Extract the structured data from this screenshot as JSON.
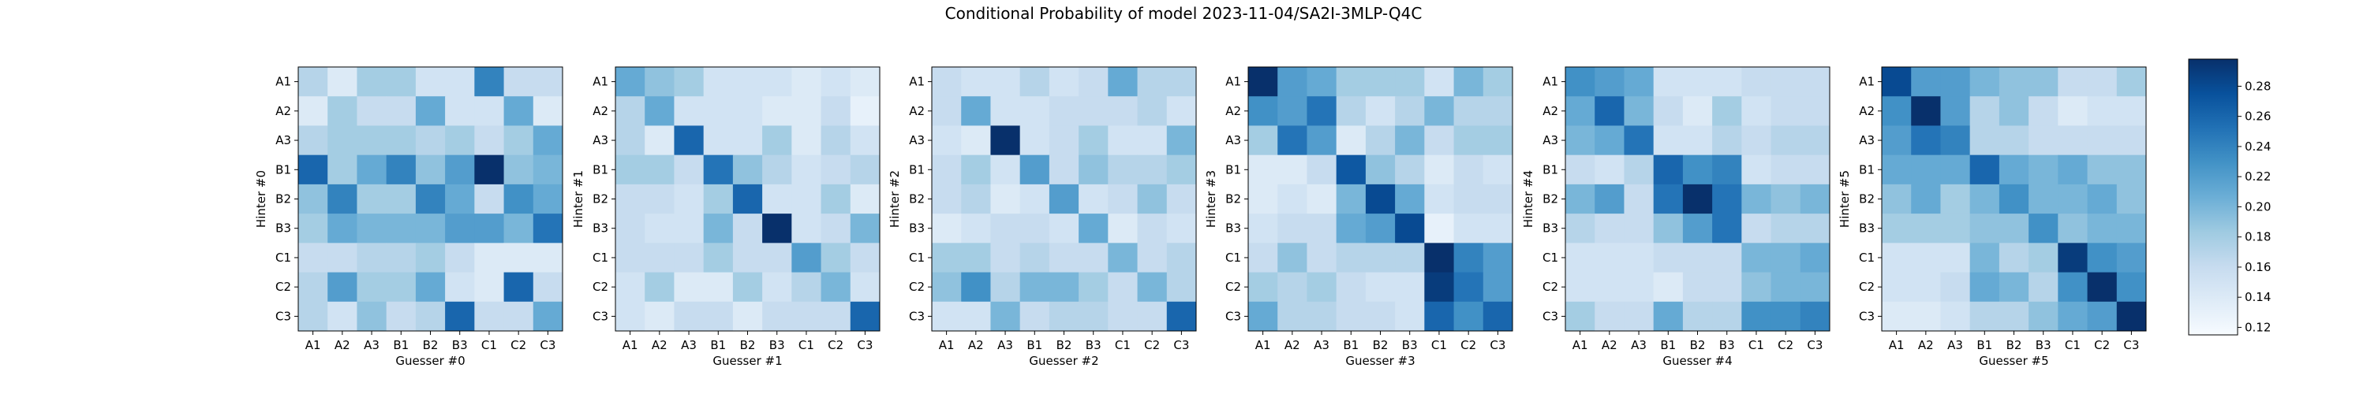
{
  "figure": {
    "title": "Conditional Probability of model 2023-11-04/SA2I-3MLP-Q4C"
  },
  "chart_data": [
    {
      "type": "heatmap",
      "index": 0,
      "xlabel": "Guesser #0",
      "ylabel": "Hinter #0",
      "x_categories": [
        "A1",
        "A2",
        "A3",
        "B1",
        "B2",
        "B3",
        "C1",
        "C2",
        "C3"
      ],
      "y_categories": [
        "A1",
        "A2",
        "A3",
        "B1",
        "B2",
        "B3",
        "C1",
        "C2",
        "C3"
      ],
      "values": [
        [
          0.17,
          0.14,
          0.18,
          0.18,
          0.15,
          0.15,
          0.24,
          0.16,
          0.16
        ],
        [
          0.14,
          0.18,
          0.16,
          0.16,
          0.21,
          0.15,
          0.15,
          0.21,
          0.14
        ],
        [
          0.17,
          0.18,
          0.18,
          0.18,
          0.17,
          0.18,
          0.16,
          0.18,
          0.21
        ],
        [
          0.26,
          0.18,
          0.21,
          0.24,
          0.19,
          0.22,
          0.3,
          0.19,
          0.2
        ],
        [
          0.19,
          0.24,
          0.18,
          0.18,
          0.24,
          0.21,
          0.16,
          0.23,
          0.21
        ],
        [
          0.18,
          0.21,
          0.2,
          0.2,
          0.2,
          0.22,
          0.22,
          0.2,
          0.25
        ],
        [
          0.16,
          0.16,
          0.17,
          0.17,
          0.18,
          0.16,
          0.14,
          0.14,
          0.14
        ],
        [
          0.17,
          0.22,
          0.18,
          0.18,
          0.21,
          0.15,
          0.14,
          0.26,
          0.16
        ],
        [
          0.17,
          0.15,
          0.19,
          0.16,
          0.17,
          0.26,
          0.16,
          0.16,
          0.21
        ]
      ]
    },
    {
      "type": "heatmap",
      "index": 1,
      "xlabel": "Guesser #1",
      "ylabel": "Hinter #1",
      "x_categories": [
        "A1",
        "A2",
        "A3",
        "B1",
        "B2",
        "B3",
        "C1",
        "C2",
        "C3"
      ],
      "y_categories": [
        "A1",
        "A2",
        "A3",
        "B1",
        "B2",
        "B3",
        "C1",
        "C2",
        "C3"
      ],
      "values": [
        [
          0.21,
          0.19,
          0.18,
          0.15,
          0.15,
          0.15,
          0.14,
          0.15,
          0.14
        ],
        [
          0.17,
          0.21,
          0.15,
          0.15,
          0.15,
          0.14,
          0.14,
          0.16,
          0.13
        ],
        [
          0.17,
          0.14,
          0.26,
          0.15,
          0.15,
          0.18,
          0.14,
          0.17,
          0.15
        ],
        [
          0.18,
          0.18,
          0.16,
          0.25,
          0.19,
          0.17,
          0.15,
          0.16,
          0.17
        ],
        [
          0.16,
          0.16,
          0.15,
          0.18,
          0.26,
          0.15,
          0.15,
          0.18,
          0.14
        ],
        [
          0.16,
          0.15,
          0.15,
          0.2,
          0.16,
          0.3,
          0.15,
          0.16,
          0.2
        ],
        [
          0.16,
          0.16,
          0.16,
          0.18,
          0.16,
          0.16,
          0.22,
          0.18,
          0.16
        ],
        [
          0.15,
          0.18,
          0.14,
          0.14,
          0.18,
          0.15,
          0.17,
          0.2,
          0.15
        ],
        [
          0.15,
          0.14,
          0.16,
          0.16,
          0.14,
          0.16,
          0.16,
          0.16,
          0.26
        ]
      ]
    },
    {
      "type": "heatmap",
      "index": 2,
      "xlabel": "Guesser #2",
      "ylabel": "Hinter #2",
      "x_categories": [
        "A1",
        "A2",
        "A3",
        "B1",
        "B2",
        "B3",
        "C1",
        "C2",
        "C3"
      ],
      "y_categories": [
        "A1",
        "A2",
        "A3",
        "B1",
        "B2",
        "B3",
        "C1",
        "C2",
        "C3"
      ],
      "values": [
        [
          0.16,
          0.15,
          0.15,
          0.17,
          0.15,
          0.16,
          0.21,
          0.17,
          0.17
        ],
        [
          0.16,
          0.21,
          0.15,
          0.15,
          0.16,
          0.16,
          0.16,
          0.17,
          0.15
        ],
        [
          0.15,
          0.14,
          0.3,
          0.15,
          0.16,
          0.18,
          0.15,
          0.15,
          0.2
        ],
        [
          0.16,
          0.18,
          0.15,
          0.22,
          0.16,
          0.19,
          0.17,
          0.17,
          0.18
        ],
        [
          0.16,
          0.17,
          0.14,
          0.15,
          0.22,
          0.15,
          0.16,
          0.19,
          0.16
        ],
        [
          0.14,
          0.15,
          0.16,
          0.16,
          0.15,
          0.21,
          0.14,
          0.16,
          0.15
        ],
        [
          0.18,
          0.18,
          0.16,
          0.17,
          0.16,
          0.16,
          0.2,
          0.16,
          0.17
        ],
        [
          0.19,
          0.23,
          0.17,
          0.2,
          0.2,
          0.18,
          0.16,
          0.2,
          0.17
        ],
        [
          0.15,
          0.15,
          0.2,
          0.16,
          0.17,
          0.17,
          0.16,
          0.16,
          0.26
        ]
      ]
    },
    {
      "type": "heatmap",
      "index": 3,
      "xlabel": "Guesser #3",
      "ylabel": "Hinter #3",
      "x_categories": [
        "A1",
        "A2",
        "A3",
        "B1",
        "B2",
        "B3",
        "C1",
        "C2",
        "C3"
      ],
      "y_categories": [
        "A1",
        "A2",
        "A3",
        "B1",
        "B2",
        "B3",
        "C1",
        "C2",
        "C3"
      ],
      "values": [
        [
          0.3,
          0.22,
          0.21,
          0.18,
          0.18,
          0.18,
          0.15,
          0.2,
          0.18
        ],
        [
          0.23,
          0.22,
          0.25,
          0.17,
          0.15,
          0.17,
          0.2,
          0.17,
          0.17
        ],
        [
          0.18,
          0.25,
          0.22,
          0.14,
          0.17,
          0.2,
          0.16,
          0.18,
          0.18
        ],
        [
          0.14,
          0.14,
          0.16,
          0.27,
          0.19,
          0.17,
          0.14,
          0.16,
          0.15
        ],
        [
          0.14,
          0.15,
          0.14,
          0.2,
          0.28,
          0.21,
          0.15,
          0.16,
          0.16
        ],
        [
          0.15,
          0.16,
          0.16,
          0.21,
          0.22,
          0.28,
          0.13,
          0.15,
          0.15
        ],
        [
          0.16,
          0.19,
          0.16,
          0.17,
          0.17,
          0.17,
          0.3,
          0.24,
          0.22
        ],
        [
          0.18,
          0.17,
          0.18,
          0.16,
          0.15,
          0.15,
          0.29,
          0.25,
          0.22
        ],
        [
          0.21,
          0.17,
          0.17,
          0.16,
          0.16,
          0.15,
          0.26,
          0.23,
          0.26
        ]
      ]
    },
    {
      "type": "heatmap",
      "index": 4,
      "xlabel": "Guesser #4",
      "ylabel": "Hinter #4",
      "x_categories": [
        "A1",
        "A2",
        "A3",
        "B1",
        "B2",
        "B3",
        "C1",
        "C2",
        "C3"
      ],
      "y_categories": [
        "A1",
        "A2",
        "A3",
        "B1",
        "B2",
        "B3",
        "C1",
        "C2",
        "C3"
      ],
      "values": [
        [
          0.23,
          0.22,
          0.21,
          0.15,
          0.15,
          0.15,
          0.16,
          0.16,
          0.16
        ],
        [
          0.21,
          0.26,
          0.2,
          0.16,
          0.14,
          0.18,
          0.15,
          0.16,
          0.16
        ],
        [
          0.2,
          0.21,
          0.25,
          0.15,
          0.15,
          0.17,
          0.16,
          0.17,
          0.17
        ],
        [
          0.16,
          0.15,
          0.17,
          0.26,
          0.23,
          0.24,
          0.15,
          0.16,
          0.16
        ],
        [
          0.2,
          0.22,
          0.16,
          0.25,
          0.3,
          0.25,
          0.2,
          0.19,
          0.2
        ],
        [
          0.17,
          0.16,
          0.16,
          0.19,
          0.22,
          0.25,
          0.16,
          0.17,
          0.17
        ],
        [
          0.15,
          0.15,
          0.15,
          0.16,
          0.16,
          0.16,
          0.2,
          0.2,
          0.21
        ],
        [
          0.15,
          0.15,
          0.15,
          0.14,
          0.16,
          0.16,
          0.19,
          0.2,
          0.2
        ],
        [
          0.18,
          0.16,
          0.16,
          0.21,
          0.17,
          0.17,
          0.23,
          0.23,
          0.24
        ]
      ]
    },
    {
      "type": "heatmap",
      "index": 5,
      "xlabel": "Guesser #5",
      "ylabel": "Hinter #5",
      "x_categories": [
        "A1",
        "A2",
        "A3",
        "B1",
        "B2",
        "B3",
        "C1",
        "C2",
        "C3"
      ],
      "y_categories": [
        "A1",
        "A2",
        "A3",
        "B1",
        "B2",
        "B3",
        "C1",
        "C2",
        "C3"
      ],
      "values": [
        [
          0.28,
          0.22,
          0.22,
          0.2,
          0.19,
          0.19,
          0.16,
          0.16,
          0.18
        ],
        [
          0.23,
          0.3,
          0.22,
          0.17,
          0.19,
          0.16,
          0.14,
          0.15,
          0.15
        ],
        [
          0.22,
          0.25,
          0.24,
          0.17,
          0.17,
          0.16,
          0.16,
          0.16,
          0.16
        ],
        [
          0.21,
          0.21,
          0.21,
          0.26,
          0.21,
          0.2,
          0.21,
          0.19,
          0.19
        ],
        [
          0.19,
          0.21,
          0.18,
          0.2,
          0.23,
          0.2,
          0.2,
          0.21,
          0.19
        ],
        [
          0.18,
          0.18,
          0.18,
          0.19,
          0.19,
          0.23,
          0.19,
          0.2,
          0.2
        ],
        [
          0.15,
          0.15,
          0.15,
          0.2,
          0.17,
          0.18,
          0.29,
          0.23,
          0.22
        ],
        [
          0.15,
          0.15,
          0.16,
          0.21,
          0.2,
          0.17,
          0.23,
          0.3,
          0.23
        ],
        [
          0.14,
          0.14,
          0.15,
          0.17,
          0.17,
          0.19,
          0.21,
          0.22,
          0.3
        ]
      ]
    }
  ],
  "colorbar": {
    "vmin": 0.115,
    "vmax": 0.298,
    "ticks": [
      "0.12",
      "0.14",
      "0.16",
      "0.18",
      "0.20",
      "0.22",
      "0.24",
      "0.26",
      "0.28"
    ],
    "colormap": "Blues",
    "colors": [
      "#f7fbff",
      "#deebf7",
      "#c6dbef",
      "#9ecae1",
      "#6baed6",
      "#4292c6",
      "#2171b5",
      "#08519c",
      "#08306b"
    ]
  }
}
